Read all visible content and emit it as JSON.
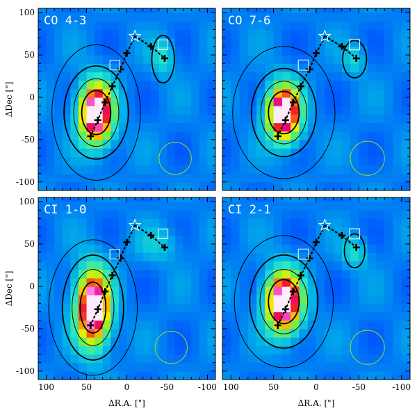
{
  "figure": {
    "colors": {
      "frame": "#000000",
      "contour": "#000000",
      "track": "#000000",
      "star": "#ffffff",
      "open_square": "#ffffff",
      "beam_circle": "#9be21c",
      "label_text": "#ffffff"
    }
  },
  "chart_data": [
    {
      "type": "heatmap",
      "title": "CO 4-3",
      "xlabel": "",
      "ylabel": "ΔDec [\"]",
      "xlim": [
        110,
        -110
      ],
      "ylim": [
        -110,
        105
      ],
      "xticks": [],
      "yticks": [
        "100",
        "50",
        "0",
        "-50",
        "-100"
      ],
      "peaks": [
        {
          "x": 38,
          "y": -18,
          "sx": 14,
          "sy": 24,
          "amp": 1.0
        },
        {
          "x": -45,
          "y": 48,
          "sx": 10,
          "sy": 14,
          "amp": 0.2
        }
      ],
      "contours": [
        {
          "cx": 38,
          "cy": -18,
          "rx": 18,
          "ry": 26
        },
        {
          "cx": 38,
          "cy": -18,
          "rx": 28,
          "ry": 40
        },
        {
          "cx": 38,
          "cy": -18,
          "rx": 40,
          "ry": 55
        },
        {
          "cx": 38,
          "cy": -18,
          "rx": 55,
          "ry": 80
        },
        {
          "cx": -45,
          "cy": 45,
          "rx": 14,
          "ry": 28
        }
      ],
      "beam": {
        "x": -60,
        "y": -72,
        "r": 20
      }
    },
    {
      "type": "heatmap",
      "title": "CO 7-6",
      "xlabel": "",
      "ylabel": "",
      "xlim": [
        110,
        -110
      ],
      "ylim": [
        -110,
        105
      ],
      "xticks": [],
      "yticks": [],
      "peaks": [
        {
          "x": 38,
          "y": -18,
          "sx": 13,
          "sy": 22,
          "amp": 1.0
        },
        {
          "x": -45,
          "y": 45,
          "sx": 9,
          "sy": 12,
          "amp": 0.15
        }
      ],
      "contours": [
        {
          "cx": 38,
          "cy": -18,
          "rx": 18,
          "ry": 25
        },
        {
          "cx": 38,
          "cy": -18,
          "rx": 27,
          "ry": 37
        },
        {
          "cx": 38,
          "cy": -18,
          "rx": 38,
          "ry": 52
        },
        {
          "cx": 38,
          "cy": -18,
          "rx": 60,
          "ry": 78
        },
        {
          "cx": -45,
          "cy": 45,
          "rx": 14,
          "ry": 22
        }
      ],
      "beam": {
        "x": -60,
        "y": -72,
        "r": 20
      }
    },
    {
      "type": "heatmap",
      "title": "CI 1-0",
      "xlabel": "ΔR.A. [\"]",
      "ylabel": "ΔDec [\"]",
      "xlim": [
        110,
        -110
      ],
      "ylim": [
        -110,
        105
      ],
      "xticks": [
        "100",
        "50",
        "0",
        "-50",
        "-100"
      ],
      "yticks": [
        "100",
        "50",
        "0",
        "-50",
        "-100"
      ],
      "peaks": [
        {
          "x": 42,
          "y": -25,
          "sx": 14,
          "sy": 30,
          "amp": 1.0
        },
        {
          "x": -40,
          "y": 50,
          "sx": 18,
          "sy": 14,
          "amp": 0.12
        }
      ],
      "contours": [
        {
          "cx": 42,
          "cy": -25,
          "rx": 16,
          "ry": 30
        },
        {
          "cx": 42,
          "cy": -25,
          "rx": 26,
          "ry": 45
        },
        {
          "cx": 42,
          "cy": -25,
          "rx": 38,
          "ry": 62
        },
        {
          "cx": 42,
          "cy": -25,
          "rx": 55,
          "ry": 80
        }
      ],
      "beam": {
        "x": -55,
        "y": -72,
        "r": 20
      }
    },
    {
      "type": "heatmap",
      "title": "CI 2-1",
      "xlabel": "ΔR.A. [\"]",
      "ylabel": "",
      "xlim": [
        110,
        -110
      ],
      "ylim": [
        -110,
        105
      ],
      "xticks": [
        "100",
        "50",
        "0",
        "-50",
        "-100"
      ],
      "yticks": [],
      "peaks": [
        {
          "x": 38,
          "y": -18,
          "sx": 14,
          "sy": 24,
          "amp": 1.0
        },
        {
          "x": -45,
          "y": 40,
          "sx": 10,
          "sy": 12,
          "amp": 0.18
        }
      ],
      "contours": [
        {
          "cx": 38,
          "cy": -18,
          "rx": 18,
          "ry": 26
        },
        {
          "cx": 38,
          "cy": -18,
          "rx": 28,
          "ry": 38
        },
        {
          "cx": 38,
          "cy": -18,
          "rx": 40,
          "ry": 55
        },
        {
          "cx": 38,
          "cy": -18,
          "rx": 58,
          "ry": 78
        },
        {
          "cx": -45,
          "cy": 42,
          "rx": 12,
          "ry": 20
        }
      ],
      "beam": {
        "x": -60,
        "y": -72,
        "r": 20
      }
    }
  ],
  "overlay": {
    "track": [
      {
        "x": 45,
        "y": -46
      },
      {
        "x": 36,
        "y": -27
      },
      {
        "x": 27,
        "y": -6
      },
      {
        "x": 18,
        "y": 13
      },
      {
        "x": 8,
        "y": 33
      },
      {
        "x": 0,
        "y": 52
      },
      {
        "x": -10,
        "y": 72
      }
    ],
    "branch": [
      {
        "x": -10,
        "y": 72
      },
      {
        "x": -30,
        "y": 60
      },
      {
        "x": -47,
        "y": 46
      }
    ],
    "crosses": [
      {
        "x": 45,
        "y": -46
      },
      {
        "x": 36,
        "y": -27
      },
      {
        "x": 27,
        "y": -6
      },
      {
        "x": 18,
        "y": 13
      },
      {
        "x": 8,
        "y": 33
      },
      {
        "x": 0,
        "y": 52
      },
      {
        "x": -30,
        "y": 60
      },
      {
        "x": -47,
        "y": 46
      }
    ],
    "star": {
      "x": -10,
      "y": 72
    },
    "squares": [
      {
        "x": 15,
        "y": 38
      },
      {
        "x": -45,
        "y": 62
      }
    ],
    "square_size": 12
  }
}
